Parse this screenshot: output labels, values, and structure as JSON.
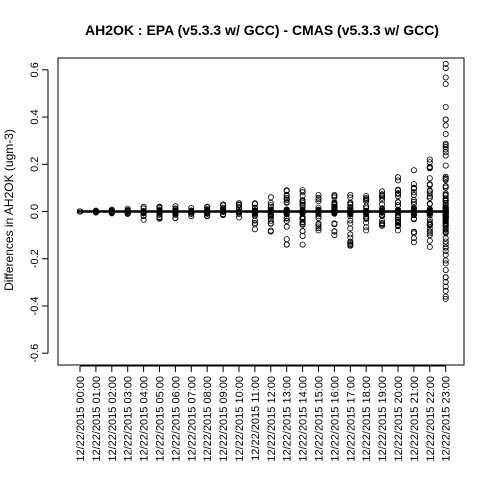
{
  "chart_data": {
    "type": "scatter",
    "title": "AH2OK : EPA (v5.3.3 w/ GCC) - CMAS (v5.3.3 w/ GCC)",
    "xlabel": "",
    "ylabel": "Differences in AH2OK (ugm-3)",
    "ylim": [
      -0.65,
      0.65
    ],
    "yticks": [
      "-0.6",
      "-0.4",
      "-0.2",
      "0.0",
      "0.2",
      "0.4",
      "0.6"
    ],
    "yticks_values": [
      -0.6,
      -0.4,
      -0.2,
      0.0,
      0.2,
      0.4,
      0.6
    ],
    "categories": [
      "12/22/2015 00:00",
      "12/22/2015 01:00",
      "12/22/2015 02:00",
      "12/22/2015 03:00",
      "12/22/2015 04:00",
      "12/22/2015 05:00",
      "12/22/2015 06:00",
      "12/22/2015 07:00",
      "12/22/2015 08:00",
      "12/22/2015 09:00",
      "12/22/2015 10:00",
      "12/22/2015 11:00",
      "12/22/2015 12:00",
      "12/22/2015 13:00",
      "12/22/2015 14:00",
      "12/22/2015 15:00",
      "12/22/2015 16:00",
      "12/22/2015 17:00",
      "12/22/2015 18:00",
      "12/22/2015 19:00",
      "12/22/2015 20:00",
      "12/22/2015 21:00",
      "12/22/2015 22:00",
      "12/22/2015 23:00"
    ],
    "range_per_hour": [
      [
        0.0,
        0.0
      ],
      [
        -0.004,
        0.004
      ],
      [
        -0.008,
        0.008
      ],
      [
        -0.01,
        0.012
      ],
      [
        -0.035,
        0.02
      ],
      [
        -0.03,
        0.02
      ],
      [
        -0.028,
        0.022
      ],
      [
        -0.02,
        0.015
      ],
      [
        -0.02,
        0.02
      ],
      [
        -0.015,
        0.03
      ],
      [
        -0.025,
        0.035
      ],
      [
        -0.075,
        0.035
      ],
      [
        -0.085,
        0.06
      ],
      [
        -0.14,
        0.09
      ],
      [
        -0.14,
        0.09
      ],
      [
        -0.08,
        0.07
      ],
      [
        -0.1,
        0.07
      ],
      [
        -0.145,
        0.07
      ],
      [
        -0.08,
        0.065
      ],
      [
        -0.06,
        0.085
      ],
      [
        -0.08,
        0.145
      ],
      [
        -0.13,
        0.175
      ],
      [
        -0.15,
        0.22
      ],
      [
        -0.37,
        0.625
      ]
    ],
    "reference_line": 0.0,
    "grid": false,
    "legend": "none"
  }
}
